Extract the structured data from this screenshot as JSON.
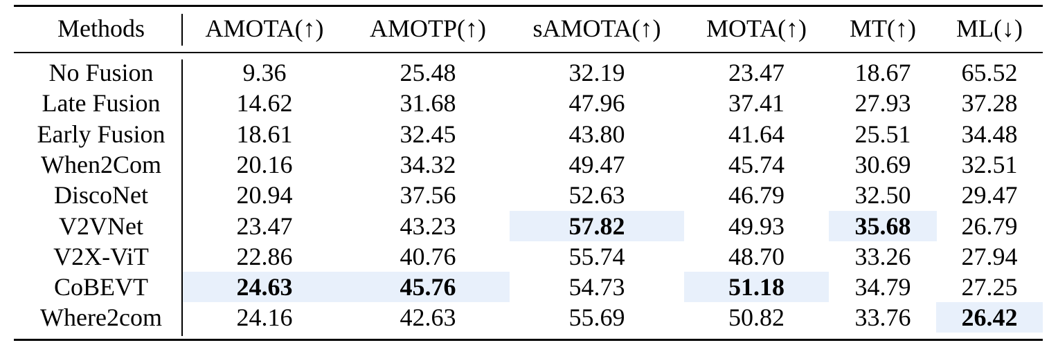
{
  "table": {
    "header": [
      "Methods",
      "AMOTA(↑)",
      "AMOTP(↑)",
      "sAMOTA(↑)",
      "MOTA(↑)",
      "MT(↑)",
      "ML(↓)"
    ],
    "rows": [
      [
        "No Fusion",
        "9.36",
        "25.48",
        "32.19",
        "23.47",
        "18.67",
        "65.52"
      ],
      [
        "Late Fusion",
        "14.62",
        "31.68",
        "47.96",
        "37.41",
        "27.93",
        "37.28"
      ],
      [
        "Early Fusion",
        "18.61",
        "32.45",
        "43.80",
        "41.64",
        "25.51",
        "34.48"
      ],
      [
        "When2Com",
        "20.16",
        "34.32",
        "49.47",
        "45.74",
        "30.69",
        "32.51"
      ],
      [
        "DiscoNet",
        "20.94",
        "37.56",
        "52.63",
        "46.79",
        "32.50",
        "29.47"
      ],
      [
        "V2VNet",
        "23.47",
        "43.23",
        "57.82",
        "49.93",
        "35.68",
        "26.79"
      ],
      [
        "V2X-ViT",
        "22.86",
        "40.76",
        "55.74",
        "48.70",
        "33.26",
        "27.94"
      ],
      [
        "CoBEVT",
        "24.63",
        "45.76",
        "54.73",
        "51.18",
        "34.79",
        "27.25"
      ],
      [
        "Where2com",
        "24.16",
        "42.63",
        "55.69",
        "50.82",
        "33.76",
        "26.42"
      ]
    ]
  }
}
